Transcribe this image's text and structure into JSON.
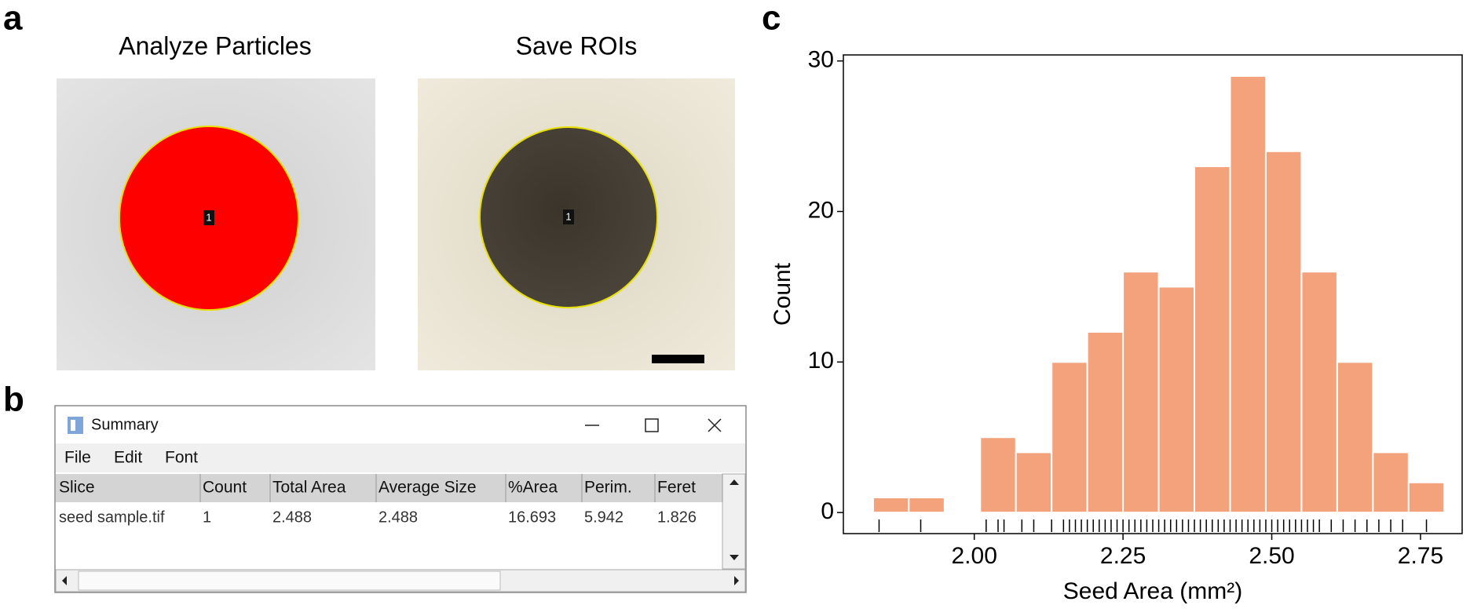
{
  "panel_labels": [
    "a",
    "b",
    "c"
  ],
  "panel_a": {
    "titles": [
      "Analyze Particles",
      "Save ROIs"
    ],
    "roi_labels": [
      "1",
      "1"
    ]
  },
  "panel_b": {
    "window_title": "Summary",
    "menu": [
      "File",
      "Edit",
      "Font"
    ],
    "columns": [
      "Slice",
      "Count",
      "Total Area",
      "Average Size",
      "%Area",
      "Perim.",
      "Feret"
    ],
    "rows": [
      [
        "seed sample.tif",
        "1",
        "2.488",
        "2.488",
        "16.693",
        "5.942",
        "1.826"
      ]
    ]
  },
  "chart_data": {
    "type": "histogram",
    "xlabel": "Seed Area (mm²)",
    "ylabel": "Count",
    "bins": [
      1.83,
      1.89,
      1.95,
      2.01,
      2.07,
      2.13,
      2.19,
      2.25,
      2.31,
      2.37,
      2.43,
      2.49,
      2.55,
      2.61,
      2.67,
      2.73,
      2.79
    ],
    "values": [
      1,
      1,
      0,
      5,
      4,
      10,
      12,
      16,
      15,
      23,
      29,
      24,
      16,
      10,
      4,
      2
    ],
    "color": "#f4a27c",
    "xlim": [
      1.78,
      2.82
    ],
    "ylim": [
      -1.4,
      30.4
    ],
    "xticks": [
      {
        "value": 2,
        "label": "2.00"
      },
      {
        "value": 2.25,
        "label": "2.25"
      },
      {
        "value": 2.5,
        "label": "2.50"
      },
      {
        "value": 2.75,
        "label": "2.75"
      }
    ],
    "yticks": [
      0,
      10,
      20,
      30
    ],
    "rug": [
      1.84,
      1.91,
      2.02,
      2.04,
      2.05,
      2.08,
      2.1,
      2.13,
      2.15,
      2.16,
      2.17,
      2.18,
      2.19,
      2.2,
      2.21,
      2.22,
      2.23,
      2.24,
      2.25,
      2.26,
      2.27,
      2.28,
      2.29,
      2.3,
      2.31,
      2.32,
      2.33,
      2.34,
      2.35,
      2.36,
      2.37,
      2.38,
      2.39,
      2.4,
      2.41,
      2.42,
      2.43,
      2.44,
      2.45,
      2.46,
      2.47,
      2.48,
      2.49,
      2.5,
      2.51,
      2.52,
      2.53,
      2.54,
      2.55,
      2.56,
      2.57,
      2.58,
      2.6,
      2.62,
      2.64,
      2.66,
      2.68,
      2.7,
      2.72,
      2.76
    ]
  }
}
